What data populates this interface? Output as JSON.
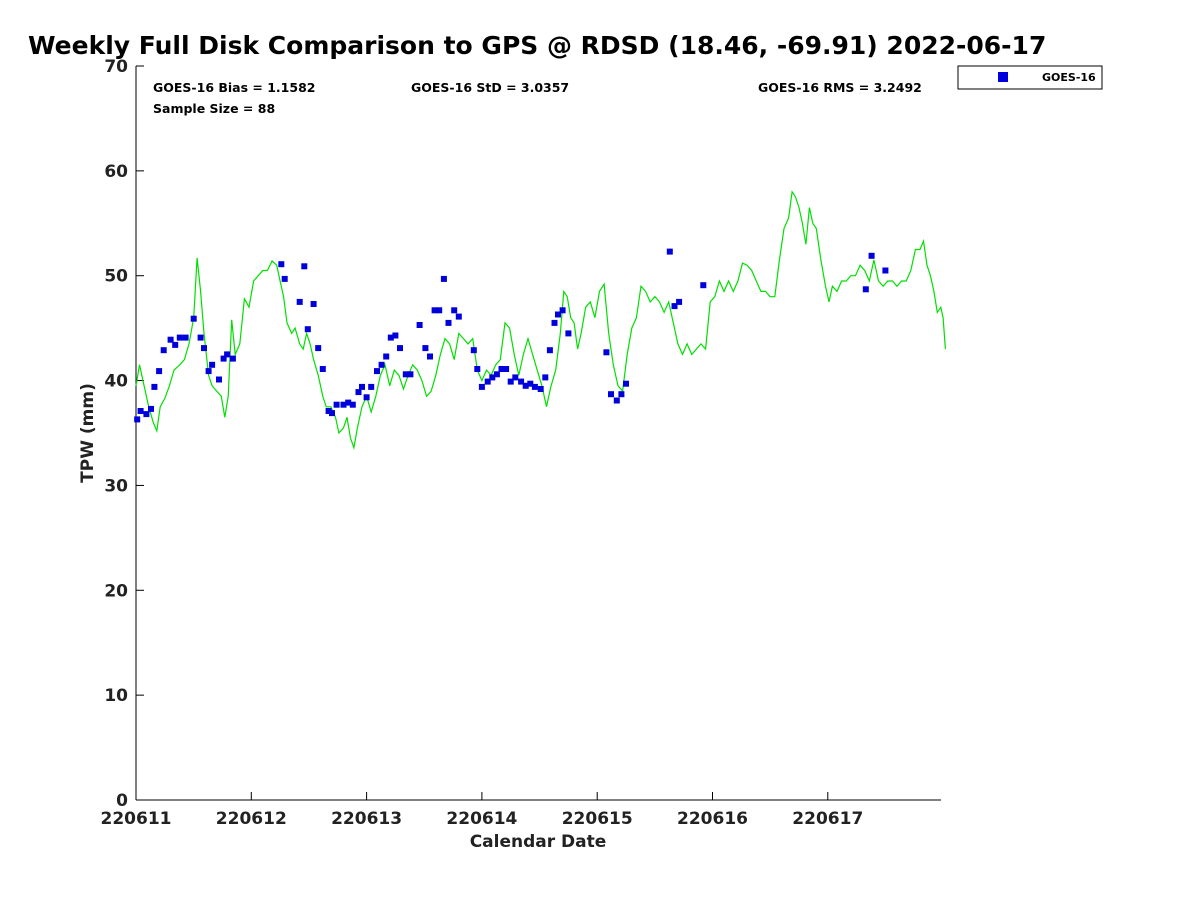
{
  "chart_data": {
    "type": "scatter",
    "title": "Weekly Full Disk Comparison to GPS @ RDSD (18.46, -69.91) 2022-06-17",
    "xlabel": "Calendar Date",
    "ylabel": "TPW (mm)",
    "xlim": [
      0,
      7
    ],
    "ylim": [
      0,
      70
    ],
    "y_ticks": [
      0,
      10,
      20,
      30,
      40,
      50,
      60,
      70
    ],
    "x_ticks": [
      {
        "x": 0,
        "label": "220611"
      },
      {
        "x": 1,
        "label": "220612"
      },
      {
        "x": 2,
        "label": "220613"
      },
      {
        "x": 3,
        "label": "220614"
      },
      {
        "x": 4,
        "label": "220615"
      },
      {
        "x": 5,
        "label": "220616"
      },
      {
        "x": 6,
        "label": "220617"
      }
    ],
    "stats": {
      "bias": "GOES-16 Bias = 1.1582",
      "std": "GOES-16 StD = 3.0357",
      "rms": "GOES-16 RMS = 3.2492",
      "sample_size": "Sample Size = 88"
    },
    "legend": {
      "placement": "outside top-right",
      "entries": [
        "GOES-16"
      ]
    },
    "grid": false,
    "series": [
      {
        "name": "GOES-16",
        "marker": "square",
        "color": "#0000dd",
        "points": [
          [
            0.01,
            36.3
          ],
          [
            0.04,
            37.1
          ],
          [
            0.09,
            36.8
          ],
          [
            0.13,
            37.3
          ],
          [
            0.16,
            39.4
          ],
          [
            0.2,
            40.9
          ],
          [
            0.24,
            42.9
          ],
          [
            0.3,
            43.9
          ],
          [
            0.34,
            43.4
          ],
          [
            0.38,
            44.1
          ],
          [
            0.43,
            44.1
          ],
          [
            0.5,
            45.9
          ],
          [
            0.56,
            44.1
          ],
          [
            0.59,
            43.1
          ],
          [
            0.63,
            40.9
          ],
          [
            0.66,
            41.5
          ],
          [
            0.72,
            40.1
          ],
          [
            0.76,
            42.1
          ],
          [
            0.79,
            42.5
          ],
          [
            0.84,
            42.1
          ],
          [
            1.26,
            51.1
          ],
          [
            1.29,
            49.7
          ],
          [
            1.42,
            47.5
          ],
          [
            1.46,
            50.9
          ],
          [
            1.49,
            44.9
          ],
          [
            1.54,
            47.3
          ],
          [
            1.58,
            43.1
          ],
          [
            1.62,
            41.1
          ],
          [
            1.67,
            37.1
          ],
          [
            1.7,
            36.9
          ],
          [
            1.74,
            37.7
          ],
          [
            1.8,
            37.7
          ],
          [
            1.84,
            37.9
          ],
          [
            1.88,
            37.7
          ],
          [
            1.93,
            38.9
          ],
          [
            1.96,
            39.4
          ],
          [
            2.0,
            38.4
          ],
          [
            2.04,
            39.4
          ],
          [
            2.09,
            40.9
          ],
          [
            2.13,
            41.5
          ],
          [
            2.17,
            42.3
          ],
          [
            2.21,
            44.1
          ],
          [
            2.25,
            44.3
          ],
          [
            2.29,
            43.1
          ],
          [
            2.34,
            40.6
          ],
          [
            2.38,
            40.6
          ],
          [
            2.46,
            45.3
          ],
          [
            2.51,
            43.1
          ],
          [
            2.55,
            42.3
          ],
          [
            2.59,
            46.7
          ],
          [
            2.63,
            46.7
          ],
          [
            2.67,
            49.7
          ],
          [
            2.71,
            45.5
          ],
          [
            2.76,
            46.7
          ],
          [
            2.8,
            46.1
          ],
          [
            2.93,
            42.9
          ],
          [
            2.96,
            41.1
          ],
          [
            3.0,
            39.4
          ],
          [
            3.05,
            39.9
          ],
          [
            3.09,
            40.3
          ],
          [
            3.13,
            40.6
          ],
          [
            3.17,
            41.1
          ],
          [
            3.21,
            41.1
          ],
          [
            3.25,
            39.9
          ],
          [
            3.29,
            40.3
          ],
          [
            3.34,
            39.9
          ],
          [
            3.38,
            39.5
          ],
          [
            3.42,
            39.7
          ],
          [
            3.46,
            39.4
          ],
          [
            3.51,
            39.2
          ],
          [
            3.55,
            40.3
          ],
          [
            3.59,
            42.9
          ],
          [
            3.63,
            45.5
          ],
          [
            3.66,
            46.3
          ],
          [
            3.7,
            46.7
          ],
          [
            3.75,
            44.5
          ],
          [
            4.08,
            42.7
          ],
          [
            4.12,
            38.7
          ],
          [
            4.17,
            38.1
          ],
          [
            4.21,
            38.7
          ],
          [
            4.25,
            39.7
          ],
          [
            4.63,
            52.3
          ],
          [
            4.67,
            47.1
          ],
          [
            4.71,
            47.5
          ],
          [
            4.92,
            49.1
          ],
          [
            6.33,
            48.7
          ],
          [
            6.38,
            51.9
          ],
          [
            6.5,
            50.5
          ]
        ]
      },
      {
        "name": "GPS",
        "type": "line",
        "color": "#00e000",
        "points": [
          [
            0.0,
            39.5
          ],
          [
            0.03,
            41.5
          ],
          [
            0.07,
            39.5
          ],
          [
            0.11,
            37.5
          ],
          [
            0.15,
            36.0
          ],
          [
            0.18,
            35.2
          ],
          [
            0.21,
            37.5
          ],
          [
            0.25,
            38.3
          ],
          [
            0.29,
            39.5
          ],
          [
            0.33,
            41.0
          ],
          [
            0.38,
            41.5
          ],
          [
            0.42,
            42.0
          ],
          [
            0.46,
            43.5
          ],
          [
            0.5,
            46.0
          ],
          [
            0.53,
            51.7
          ],
          [
            0.56,
            48.5
          ],
          [
            0.59,
            44.5
          ],
          [
            0.63,
            40.5
          ],
          [
            0.66,
            39.5
          ],
          [
            0.7,
            39.0
          ],
          [
            0.74,
            38.5
          ],
          [
            0.77,
            36.5
          ],
          [
            0.8,
            38.5
          ],
          [
            0.83,
            45.8
          ],
          [
            0.86,
            42.5
          ],
          [
            0.9,
            43.5
          ],
          [
            0.94,
            47.8
          ],
          [
            0.98,
            47.0
          ],
          [
            1.02,
            49.5
          ],
          [
            1.06,
            50.0
          ],
          [
            1.1,
            50.5
          ],
          [
            1.14,
            50.5
          ],
          [
            1.18,
            51.4
          ],
          [
            1.22,
            51.0
          ],
          [
            1.25,
            49.5
          ],
          [
            1.28,
            48.0
          ],
          [
            1.31,
            45.5
          ],
          [
            1.35,
            44.5
          ],
          [
            1.38,
            45.0
          ],
          [
            1.42,
            43.5
          ],
          [
            1.45,
            43.0
          ],
          [
            1.48,
            44.5
          ],
          [
            1.51,
            43.5
          ],
          [
            1.54,
            42.0
          ],
          [
            1.58,
            40.5
          ],
          [
            1.62,
            38.5
          ],
          [
            1.65,
            37.5
          ],
          [
            1.69,
            37.5
          ],
          [
            1.73,
            36.5
          ],
          [
            1.76,
            35.0
          ],
          [
            1.8,
            35.5
          ],
          [
            1.83,
            36.5
          ],
          [
            1.86,
            34.5
          ],
          [
            1.89,
            33.6
          ],
          [
            1.92,
            35.5
          ],
          [
            1.96,
            37.5
          ],
          [
            2.0,
            38.5
          ],
          [
            2.04,
            37.0
          ],
          [
            2.08,
            38.5
          ],
          [
            2.12,
            40.5
          ],
          [
            2.16,
            41.5
          ],
          [
            2.2,
            39.5
          ],
          [
            2.24,
            41.0
          ],
          [
            2.28,
            40.5
          ],
          [
            2.32,
            39.2
          ],
          [
            2.36,
            40.5
          ],
          [
            2.4,
            41.5
          ],
          [
            2.44,
            41.0
          ],
          [
            2.48,
            40.0
          ],
          [
            2.52,
            38.5
          ],
          [
            2.56,
            39.0
          ],
          [
            2.6,
            40.5
          ],
          [
            2.64,
            42.5
          ],
          [
            2.68,
            44.0
          ],
          [
            2.72,
            43.5
          ],
          [
            2.76,
            42.0
          ],
          [
            2.8,
            44.5
          ],
          [
            2.84,
            44.0
          ],
          [
            2.88,
            43.5
          ],
          [
            2.92,
            44.0
          ],
          [
            2.96,
            41.0
          ],
          [
            3.0,
            40.0
          ],
          [
            3.04,
            41.0
          ],
          [
            3.08,
            40.5
          ],
          [
            3.12,
            41.5
          ],
          [
            3.16,
            42.0
          ],
          [
            3.2,
            45.5
          ],
          [
            3.24,
            45.0
          ],
          [
            3.28,
            42.5
          ],
          [
            3.32,
            40.5
          ],
          [
            3.36,
            42.5
          ],
          [
            3.4,
            44.0
          ],
          [
            3.44,
            42.5
          ],
          [
            3.48,
            41.0
          ],
          [
            3.52,
            39.5
          ],
          [
            3.56,
            37.5
          ],
          [
            3.6,
            39.5
          ],
          [
            3.64,
            41.0
          ],
          [
            3.68,
            44.5
          ],
          [
            3.71,
            48.5
          ],
          [
            3.74,
            48.0
          ],
          [
            3.77,
            46.0
          ],
          [
            3.8,
            45.5
          ],
          [
            3.83,
            43.0
          ],
          [
            3.86,
            44.5
          ],
          [
            3.9,
            47.0
          ],
          [
            3.94,
            47.5
          ],
          [
            3.98,
            46.0
          ],
          [
            4.02,
            48.5
          ],
          [
            4.06,
            49.2
          ],
          [
            4.1,
            44.5
          ],
          [
            4.14,
            41.5
          ],
          [
            4.18,
            39.5
          ],
          [
            4.22,
            39.0
          ],
          [
            4.26,
            42.5
          ],
          [
            4.3,
            45.0
          ],
          [
            4.34,
            46.0
          ],
          [
            4.38,
            49.0
          ],
          [
            4.42,
            48.5
          ],
          [
            4.46,
            47.5
          ],
          [
            4.5,
            48.0
          ],
          [
            4.54,
            47.5
          ],
          [
            4.58,
            46.5
          ],
          [
            4.62,
            47.5
          ],
          [
            4.66,
            45.5
          ],
          [
            4.7,
            43.5
          ],
          [
            4.74,
            42.5
          ],
          [
            4.78,
            43.5
          ],
          [
            4.82,
            42.5
          ],
          [
            4.86,
            43.0
          ],
          [
            4.9,
            43.5
          ],
          [
            4.94,
            43.0
          ],
          [
            4.98,
            47.5
          ],
          [
            5.02,
            48.0
          ],
          [
            5.06,
            49.5
          ],
          [
            5.1,
            48.5
          ],
          [
            5.14,
            49.5
          ],
          [
            5.18,
            48.5
          ],
          [
            5.22,
            49.5
          ],
          [
            5.26,
            51.2
          ],
          [
            5.3,
            51.0
          ],
          [
            5.34,
            50.5
          ],
          [
            5.38,
            49.5
          ],
          [
            5.42,
            48.5
          ],
          [
            5.46,
            48.5
          ],
          [
            5.5,
            48.0
          ],
          [
            5.54,
            48.0
          ],
          [
            5.58,
            51.5
          ],
          [
            5.62,
            54.5
          ],
          [
            5.66,
            55.5
          ],
          [
            5.69,
            58.0
          ],
          [
            5.72,
            57.5
          ],
          [
            5.75,
            56.5
          ],
          [
            5.78,
            55.0
          ],
          [
            5.81,
            53.0
          ],
          [
            5.84,
            56.5
          ],
          [
            5.87,
            55.0
          ],
          [
            5.9,
            54.5
          ],
          [
            5.94,
            51.5
          ],
          [
            5.98,
            49.0
          ],
          [
            6.01,
            47.5
          ],
          [
            6.04,
            49.0
          ],
          [
            6.08,
            48.5
          ],
          [
            6.12,
            49.5
          ],
          [
            6.16,
            49.5
          ],
          [
            6.2,
            50.0
          ],
          [
            6.24,
            50.0
          ],
          [
            6.28,
            51.0
          ],
          [
            6.32,
            50.5
          ],
          [
            6.36,
            49.5
          ],
          [
            6.4,
            51.5
          ],
          [
            6.44,
            49.5
          ],
          [
            6.48,
            49.0
          ],
          [
            6.52,
            49.5
          ],
          [
            6.56,
            49.5
          ],
          [
            6.6,
            49.0
          ],
          [
            6.64,
            49.5
          ],
          [
            6.68,
            49.5
          ],
          [
            6.72,
            50.5
          ],
          [
            6.76,
            52.5
          ],
          [
            6.8,
            52.5
          ],
          [
            6.83,
            53.3
          ],
          [
            6.86,
            51.0
          ],
          [
            6.89,
            50.0
          ],
          [
            6.92,
            48.5
          ],
          [
            6.95,
            46.5
          ],
          [
            6.98,
            47.0
          ],
          [
            7.0,
            46.0
          ],
          [
            7.02,
            43.0
          ]
        ]
      }
    ]
  }
}
